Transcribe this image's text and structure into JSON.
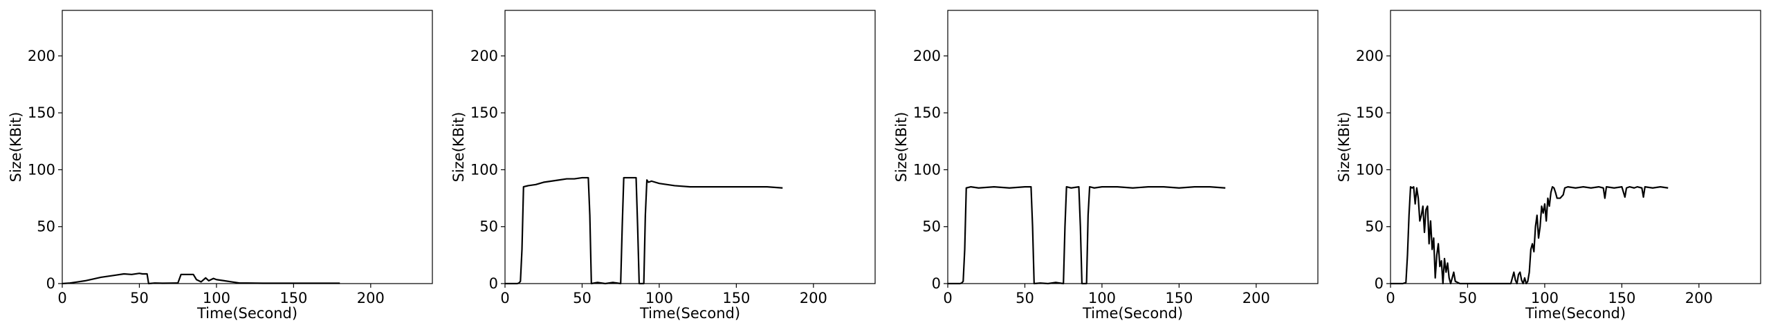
{
  "chart_data": [
    {
      "type": "line",
      "xlabel": "Time(Second)",
      "ylabel": "Size(KBit)",
      "xlim": [
        0,
        240
      ],
      "ylim": [
        0,
        240
      ],
      "xticks": [
        0,
        50,
        100,
        150,
        200
      ],
      "yticks": [
        0,
        50,
        100,
        150,
        200
      ],
      "grid": false,
      "series": [
        {
          "color": "#000000",
          "x": [
            0,
            5,
            10,
            15,
            20,
            25,
            30,
            35,
            40,
            45,
            50,
            52,
            55,
            56,
            60,
            65,
            70,
            75,
            77,
            80,
            85,
            87,
            90,
            93,
            95,
            98,
            100,
            105,
            110,
            115,
            120,
            130,
            140,
            150,
            160,
            170,
            180
          ],
          "y": [
            0,
            0.5,
            1.5,
            2.5,
            4,
            5.5,
            6.5,
            7.5,
            8.5,
            8,
            9,
            8.5,
            8.5,
            0,
            0.5,
            0.3,
            0.4,
            0.5,
            8,
            8,
            8,
            3.5,
            1.5,
            5,
            2.5,
            4.5,
            3.5,
            2.5,
            1.5,
            0.5,
            0.5,
            0.3,
            0.3,
            0.3,
            0.3,
            0.3,
            0.3
          ]
        }
      ]
    },
    {
      "type": "line",
      "xlabel": "Time(Second)",
      "ylabel": "Size(KBit)",
      "xlim": [
        0,
        240
      ],
      "ylim": [
        0,
        240
      ],
      "xticks": [
        0,
        50,
        100,
        150,
        200
      ],
      "yticks": [
        0,
        50,
        100,
        150,
        200
      ],
      "grid": false,
      "series": [
        {
          "color": "#000000",
          "x": [
            0,
            8,
            9,
            10,
            11,
            12,
            15,
            20,
            25,
            30,
            35,
            40,
            45,
            50,
            54,
            55,
            56,
            60,
            65,
            70,
            75,
            76,
            77,
            80,
            85,
            86,
            87,
            90,
            91,
            92,
            93,
            95,
            100,
            110,
            120,
            130,
            140,
            150,
            160,
            170,
            180
          ],
          "y": [
            0,
            0,
            0.5,
            2,
            30,
            85,
            86,
            87,
            89,
            90,
            91,
            92,
            92,
            93,
            93,
            60,
            0,
            1,
            0,
            1,
            0,
            50,
            93,
            93,
            93,
            50,
            0,
            0,
            60,
            91,
            89,
            90,
            88,
            86,
            85,
            85,
            85,
            85,
            85,
            85,
            84
          ]
        }
      ]
    },
    {
      "type": "line",
      "xlabel": "Time(Second)",
      "ylabel": "Size(KBit)",
      "xlim": [
        0,
        240
      ],
      "ylim": [
        0,
        240
      ],
      "xticks": [
        0,
        50,
        100,
        150,
        200
      ],
      "yticks": [
        0,
        50,
        100,
        150,
        200
      ],
      "grid": false,
      "series": [
        {
          "color": "#000000",
          "x": [
            0,
            8,
            9,
            10,
            11,
            12,
            15,
            20,
            30,
            40,
            50,
            54,
            55,
            56,
            60,
            65,
            70,
            75,
            76,
            77,
            80,
            85,
            86,
            87,
            90,
            91,
            92,
            95,
            100,
            110,
            120,
            130,
            140,
            150,
            160,
            170,
            180
          ],
          "y": [
            0,
            0,
            0.5,
            2,
            30,
            84,
            85,
            84,
            85,
            84,
            85,
            85,
            50,
            0,
            0.5,
            0,
            1,
            0,
            50,
            85,
            84,
            85,
            50,
            0,
            0,
            60,
            85,
            84,
            85,
            85,
            84,
            85,
            85,
            84,
            85,
            85,
            84
          ]
        }
      ]
    },
    {
      "type": "line",
      "xlabel": "Time(Second)",
      "ylabel": "Size(KBit)",
      "xlim": [
        0,
        240
      ],
      "ylim": [
        0,
        240
      ],
      "xticks": [
        0,
        50,
        100,
        150,
        200
      ],
      "yticks": [
        0,
        50,
        100,
        150,
        200
      ],
      "grid": false,
      "series": [
        {
          "color": "#000000",
          "x": [
            0,
            8,
            10,
            11,
            12,
            13,
            14,
            15,
            16,
            17,
            18,
            19,
            20,
            21,
            22,
            23,
            24,
            25,
            26,
            27,
            28,
            29,
            30,
            31,
            32,
            33,
            34,
            35,
            36,
            37,
            38,
            39,
            40,
            41,
            42,
            45,
            50,
            60,
            70,
            78,
            79,
            80,
            81,
            82,
            83,
            84,
            85,
            86,
            87,
            88,
            89,
            90,
            91,
            92,
            93,
            94,
            95,
            96,
            97,
            98,
            99,
            100,
            101,
            102,
            103,
            104,
            105,
            106,
            107,
            108,
            110,
            112,
            113,
            115,
            120,
            125,
            130,
            135,
            138,
            139,
            140,
            145,
            150,
            152,
            153,
            155,
            158,
            160,
            163,
            164,
            165,
            170,
            175,
            180
          ],
          "y": [
            0,
            0,
            1,
            25,
            60,
            85,
            84,
            85,
            70,
            84,
            75,
            55,
            60,
            68,
            45,
            65,
            68,
            35,
            55,
            30,
            40,
            5,
            25,
            35,
            15,
            20,
            0,
            22,
            10,
            18,
            5,
            0,
            5,
            10,
            2,
            0,
            0,
            0,
            0,
            0,
            5,
            10,
            3,
            0,
            8,
            10,
            3,
            0,
            5,
            0,
            2,
            10,
            30,
            35,
            28,
            50,
            60,
            40,
            50,
            68,
            62,
            70,
            55,
            75,
            68,
            80,
            85,
            84,
            80,
            75,
            75,
            78,
            84,
            85,
            84,
            85,
            84,
            85,
            84,
            75,
            85,
            84,
            85,
            76,
            84,
            85,
            84,
            85,
            84,
            76,
            85,
            84,
            85,
            84
          ]
        }
      ]
    }
  ]
}
